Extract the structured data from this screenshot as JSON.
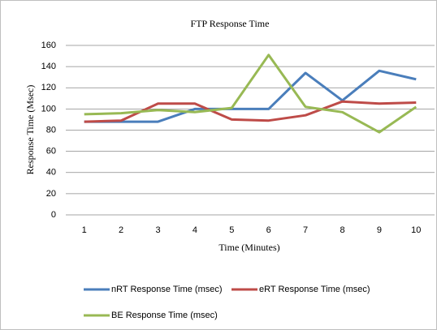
{
  "chart_data": {
    "type": "line",
    "title": "FTP Response Time",
    "x_label": "Time (Minutes)",
    "y_label": "Response Time (Msec)",
    "categories": [
      "1",
      "2",
      "3",
      "4",
      "5",
      "6",
      "7",
      "8",
      "9",
      "10"
    ],
    "series": [
      {
        "name": "nRT Response Time (msec)",
        "color": "#4a7ebb",
        "values": [
          88,
          88,
          88,
          100,
          100,
          100,
          134,
          108,
          136,
          128
        ]
      },
      {
        "name": "eRT Response Time (msec)",
        "color": "#be4b48",
        "values": [
          88,
          89,
          105,
          105,
          90,
          89,
          94,
          107,
          105,
          106
        ]
      },
      {
        "name": "BE Response Time (msec)",
        "color": "#98b954",
        "values": [
          95,
          96,
          99,
          97,
          101,
          151,
          102,
          97,
          78,
          102
        ]
      }
    ],
    "ylim": [
      0,
      160
    ],
    "yticks": [
      0,
      20,
      40,
      60,
      80,
      100,
      120,
      140,
      160
    ],
    "grid": true,
    "legend": "bottom"
  }
}
